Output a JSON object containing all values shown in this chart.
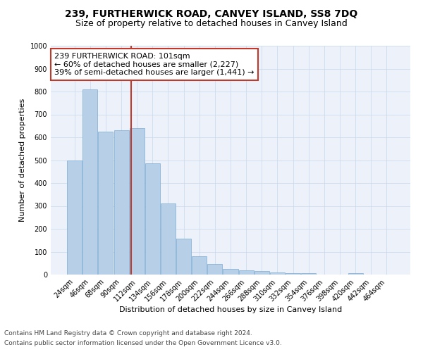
{
  "title": "239, FURTHERWICK ROAD, CANVEY ISLAND, SS8 7DQ",
  "subtitle": "Size of property relative to detached houses in Canvey Island",
  "xlabel": "Distribution of detached houses by size in Canvey Island",
  "ylabel": "Number of detached properties",
  "footnote1": "Contains HM Land Registry data © Crown copyright and database right 2024.",
  "footnote2": "Contains public sector information licensed under the Open Government Licence v3.0.",
  "annotation_line1": "239 FURTHERWICK ROAD: 101sqm",
  "annotation_line2": "← 60% of detached houses are smaller (2,227)",
  "annotation_line3": "39% of semi-detached houses are larger (1,441) →",
  "bar_values": [
    500,
    810,
    625,
    630,
    640,
    485,
    310,
    158,
    80,
    45,
    25,
    20,
    15,
    10,
    5,
    7,
    0,
    0,
    7,
    0,
    0
  ],
  "categories": [
    "24sqm",
    "46sqm",
    "68sqm",
    "90sqm",
    "112sqm",
    "134sqm",
    "156sqm",
    "178sqm",
    "200sqm",
    "222sqm",
    "244sqm",
    "266sqm",
    "288sqm",
    "310sqm",
    "332sqm",
    "354sqm",
    "376sqm",
    "398sqm",
    "420sqm",
    "442sqm",
    "464sqm"
  ],
  "bar_color": "#b8cfe8",
  "bar_edge_color": "#7aacd4",
  "vline_color": "#c0392b",
  "annotation_box_color": "#c0392b",
  "ylim": [
    0,
    1000
  ],
  "yticks": [
    0,
    100,
    200,
    300,
    400,
    500,
    600,
    700,
    800,
    900,
    1000
  ],
  "grid_color": "#c5d8ee",
  "background_color": "#edf2fa",
  "title_fontsize": 10,
  "subtitle_fontsize": 9,
  "axis_label_fontsize": 8,
  "tick_fontsize": 7,
  "annotation_fontsize": 8,
  "footnote_fontsize": 6.5
}
